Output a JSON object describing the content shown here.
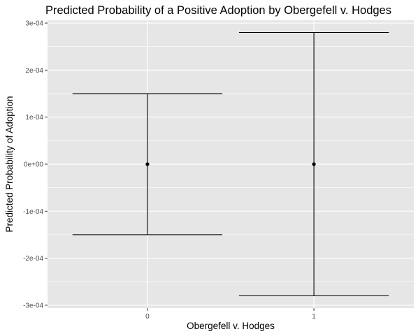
{
  "chart_data": {
    "type": "errorbar",
    "title": "Predicted Probability of a Positive Adoption by Obergefell v. Hodges",
    "xlabel": "Obergefell v. Hodges",
    "ylabel": "Predicted Probability of Adoption",
    "categories": [
      "0",
      "1"
    ],
    "points": [
      {
        "x": "0",
        "y": 0,
        "lower": -0.00015,
        "upper": 0.00015
      },
      {
        "x": "1",
        "y": 0,
        "lower": -0.00028,
        "upper": 0.00028
      }
    ],
    "y_ticks": [
      {
        "value": -0.0003,
        "label": "-3e-04"
      },
      {
        "value": -0.0002,
        "label": "-2e-04"
      },
      {
        "value": -0.0001,
        "label": "-1e-04"
      },
      {
        "value": 0,
        "label": "0e+00"
      },
      {
        "value": 0.0001,
        "label": "1e-04"
      },
      {
        "value": 0.0002,
        "label": "2e-04"
      },
      {
        "value": 0.0003,
        "label": "3e-04"
      }
    ],
    "ylim": [
      -0.000306,
      0.000306
    ],
    "grid": true,
    "colors": {
      "panel": "#e6e6e6",
      "grid": "#ffffff",
      "marks": "#000000",
      "tick_text": "#4d4d4d"
    }
  }
}
